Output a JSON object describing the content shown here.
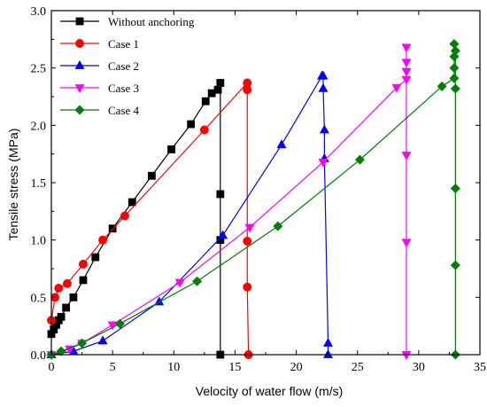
{
  "chart_data": {
    "type": "line",
    "xlabel": "Velocity of water flow (m/s)",
    "ylabel": "Tensile stress (MPa)",
    "xlim": [
      0,
      35
    ],
    "ylim": [
      0,
      3.0
    ],
    "xticks": [
      "0",
      "5",
      "10",
      "15",
      "20",
      "25",
      "30",
      "35"
    ],
    "yticks": [
      "0.0",
      "0.5",
      "1.0",
      "1.5",
      "2.0",
      "2.5",
      "3.0"
    ],
    "legend_position": "top-left",
    "grid": false,
    "series": [
      {
        "name": "Without anchoring",
        "color": "#000000",
        "marker": "square",
        "points": [
          [
            0.0,
            0.18
          ],
          [
            0.2,
            0.22
          ],
          [
            0.4,
            0.26
          ],
          [
            0.6,
            0.3
          ],
          [
            0.8,
            0.33
          ],
          [
            1.2,
            0.41
          ],
          [
            1.8,
            0.5
          ],
          [
            2.6,
            0.65
          ],
          [
            3.6,
            0.85
          ],
          [
            5.0,
            1.1
          ],
          [
            6.6,
            1.33
          ],
          [
            8.2,
            1.56
          ],
          [
            9.8,
            1.79
          ],
          [
            11.4,
            2.01
          ],
          [
            12.6,
            2.21
          ],
          [
            13.1,
            2.28
          ],
          [
            13.6,
            2.31
          ],
          [
            13.8,
            2.37
          ],
          [
            13.8,
            1.4
          ],
          [
            13.8,
            1.0
          ],
          [
            13.8,
            0.0
          ]
        ]
      },
      {
        "name": "Case 1",
        "color": "#ff0000",
        "marker": "circle",
        "points": [
          [
            0.0,
            0.3
          ],
          [
            0.3,
            0.5
          ],
          [
            0.6,
            0.58
          ],
          [
            1.3,
            0.62
          ],
          [
            2.6,
            0.79
          ],
          [
            4.2,
            1.0
          ],
          [
            6.0,
            1.21
          ],
          [
            12.5,
            1.96
          ],
          [
            16.0,
            2.37
          ],
          [
            16.0,
            2.31
          ],
          [
            16.0,
            0.99
          ],
          [
            16.0,
            0.59
          ],
          [
            16.1,
            0.0
          ]
        ]
      },
      {
        "name": "Case 2",
        "color": "#0000ff",
        "marker": "triangle-up",
        "points": [
          [
            0.0,
            0.0
          ],
          [
            1.8,
            0.03
          ],
          [
            4.2,
            0.12
          ],
          [
            8.8,
            0.46
          ],
          [
            14.0,
            1.04
          ],
          [
            18.8,
            1.83
          ],
          [
            22.1,
            2.43
          ],
          [
            22.2,
            2.43
          ],
          [
            22.2,
            2.32
          ],
          [
            22.3,
            1.96
          ],
          [
            22.3,
            1.71
          ],
          [
            22.6,
            0.1
          ],
          [
            22.6,
            0.0
          ]
        ]
      },
      {
        "name": "Case 3",
        "color": "#ff00ff",
        "marker": "triangle-down",
        "points": [
          [
            0.0,
            0.0
          ],
          [
            1.5,
            0.05
          ],
          [
            2.5,
            0.1
          ],
          [
            5.0,
            0.26
          ],
          [
            10.5,
            0.63
          ],
          [
            16.2,
            1.11
          ],
          [
            22.2,
            1.68
          ],
          [
            28.2,
            2.33
          ],
          [
            29.0,
            2.4
          ],
          [
            29.0,
            2.47
          ],
          [
            29.0,
            2.55
          ],
          [
            29.0,
            2.68
          ],
          [
            29.0,
            1.74
          ],
          [
            29.0,
            0.98
          ],
          [
            29.0,
            0.0
          ]
        ]
      },
      {
        "name": "Case 4",
        "color": "#008000",
        "marker": "diamond",
        "points": [
          [
            0.0,
            0.0
          ],
          [
            0.8,
            0.03
          ],
          [
            2.5,
            0.1
          ],
          [
            5.6,
            0.27
          ],
          [
            11.9,
            0.64
          ],
          [
            18.5,
            1.12
          ],
          [
            25.2,
            1.7
          ],
          [
            31.9,
            2.34
          ],
          [
            32.9,
            2.41
          ],
          [
            32.9,
            2.5
          ],
          [
            32.9,
            2.6
          ],
          [
            32.9,
            2.71
          ],
          [
            33.0,
            2.65
          ],
          [
            33.0,
            2.32
          ],
          [
            33.0,
            1.45
          ],
          [
            33.0,
            0.78
          ],
          [
            33.0,
            0.0
          ]
        ]
      }
    ]
  }
}
